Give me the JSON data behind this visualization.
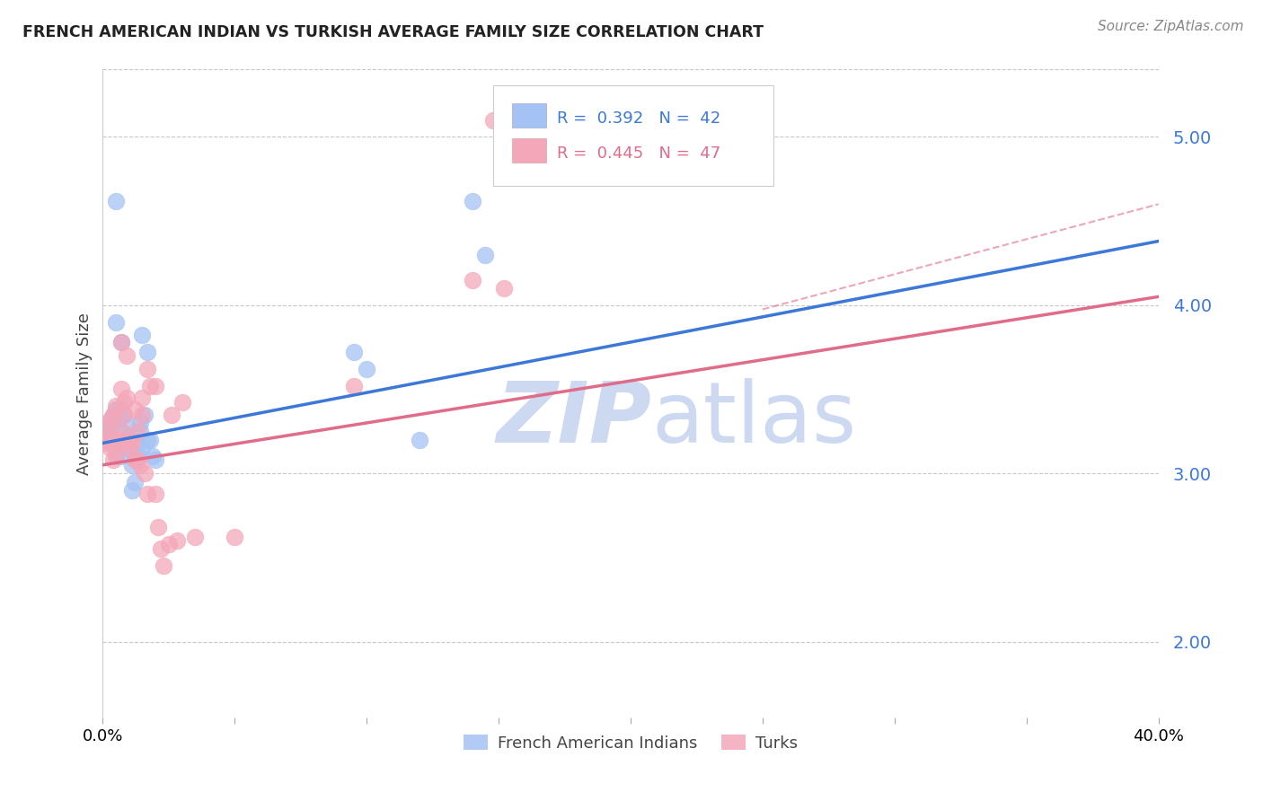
{
  "title": "FRENCH AMERICAN INDIAN VS TURKISH AVERAGE FAMILY SIZE CORRELATION CHART",
  "source": "Source: ZipAtlas.com",
  "ylabel": "Average Family Size",
  "yticks": [
    2.0,
    3.0,
    4.0,
    5.0
  ],
  "xlim": [
    0.0,
    0.4
  ],
  "ylim": [
    1.55,
    5.4
  ],
  "legend_label_blue": "French American Indians",
  "legend_label_pink": "Turks",
  "blue_color": "#a4c2f4",
  "pink_color": "#f4a7b9",
  "blue_line_color": "#3c78d8",
  "pink_line_color": "#e06c8a",
  "blue_scatter": [
    [
      0.001,
      3.2
    ],
    [
      0.002,
      3.25
    ],
    [
      0.002,
      3.3
    ],
    [
      0.003,
      3.22
    ],
    [
      0.003,
      3.28
    ],
    [
      0.004,
      3.35
    ],
    [
      0.004,
      3.18
    ],
    [
      0.005,
      3.38
    ],
    [
      0.005,
      3.1
    ],
    [
      0.006,
      3.32
    ],
    [
      0.006,
      3.38
    ],
    [
      0.007,
      3.1
    ],
    [
      0.007,
      3.25
    ],
    [
      0.008,
      3.2
    ],
    [
      0.008,
      3.35
    ],
    [
      0.009,
      3.3
    ],
    [
      0.009,
      3.15
    ],
    [
      0.01,
      3.22
    ],
    [
      0.011,
      2.9
    ],
    [
      0.011,
      3.05
    ],
    [
      0.012,
      2.95
    ],
    [
      0.012,
      3.1
    ],
    [
      0.013,
      3.12
    ],
    [
      0.013,
      3.08
    ],
    [
      0.014,
      3.3
    ],
    [
      0.014,
      3.25
    ],
    [
      0.015,
      3.15
    ],
    [
      0.016,
      3.35
    ],
    [
      0.017,
      3.2
    ],
    [
      0.018,
      3.2
    ],
    [
      0.019,
      3.1
    ],
    [
      0.02,
      3.08
    ],
    [
      0.005,
      3.9
    ],
    [
      0.007,
      3.78
    ],
    [
      0.015,
      3.82
    ],
    [
      0.017,
      3.72
    ],
    [
      0.005,
      4.62
    ],
    [
      0.095,
      3.72
    ],
    [
      0.1,
      3.62
    ],
    [
      0.12,
      3.2
    ],
    [
      0.14,
      4.62
    ],
    [
      0.145,
      4.3
    ]
  ],
  "pink_scatter": [
    [
      0.001,
      3.18
    ],
    [
      0.002,
      3.22
    ],
    [
      0.002,
      3.28
    ],
    [
      0.003,
      3.15
    ],
    [
      0.003,
      3.32
    ],
    [
      0.004,
      3.08
    ],
    [
      0.004,
      3.35
    ],
    [
      0.005,
      3.12
    ],
    [
      0.005,
      3.4
    ],
    [
      0.006,
      3.2
    ],
    [
      0.006,
      3.18
    ],
    [
      0.007,
      3.25
    ],
    [
      0.007,
      3.5
    ],
    [
      0.008,
      3.35
    ],
    [
      0.008,
      3.42
    ],
    [
      0.009,
      3.45
    ],
    [
      0.01,
      3.2
    ],
    [
      0.01,
      3.15
    ],
    [
      0.011,
      3.18
    ],
    [
      0.012,
      3.08
    ],
    [
      0.012,
      3.38
    ],
    [
      0.013,
      3.25
    ],
    [
      0.013,
      3.08
    ],
    [
      0.014,
      3.05
    ],
    [
      0.015,
      3.35
    ],
    [
      0.015,
      3.45
    ],
    [
      0.016,
      3.0
    ],
    [
      0.017,
      2.88
    ],
    [
      0.018,
      3.52
    ],
    [
      0.02,
      2.88
    ],
    [
      0.021,
      2.68
    ],
    [
      0.022,
      2.55
    ],
    [
      0.023,
      2.45
    ],
    [
      0.025,
      2.58
    ],
    [
      0.026,
      3.35
    ],
    [
      0.028,
      2.6
    ],
    [
      0.03,
      3.42
    ],
    [
      0.035,
      2.62
    ],
    [
      0.05,
      2.62
    ],
    [
      0.095,
      3.52
    ],
    [
      0.007,
      3.78
    ],
    [
      0.009,
      3.7
    ],
    [
      0.017,
      3.62
    ],
    [
      0.02,
      3.52
    ],
    [
      0.14,
      4.15
    ],
    [
      0.148,
      5.1
    ],
    [
      0.152,
      4.1
    ]
  ],
  "watermark_zip": "ZIP",
  "watermark_atlas": "atlas",
  "watermark_color": "#ccd9f0",
  "background_color": "#ffffff",
  "grid_color": "#c8c8c8"
}
